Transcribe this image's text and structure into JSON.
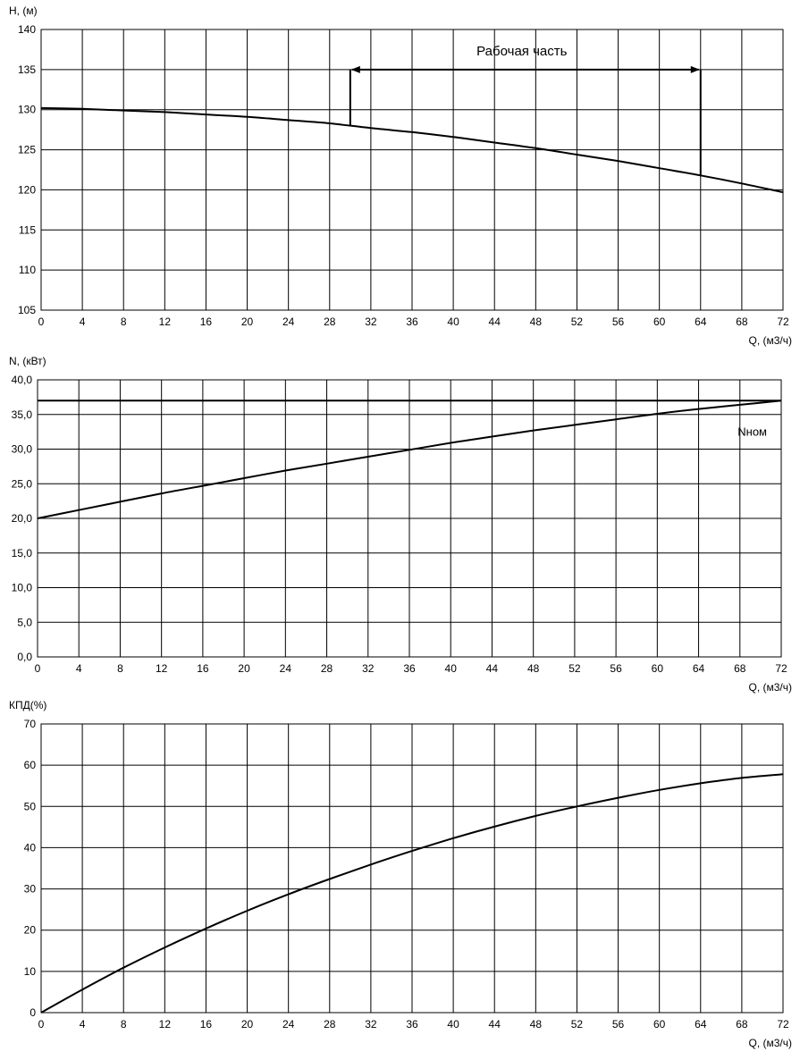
{
  "chart_data": [
    {
      "type": "line",
      "ylabel": "H, (м)",
      "xlabel": "Q, (м3/ч)",
      "xlim": [
        0,
        72
      ],
      "ylim": [
        105,
        140
      ],
      "x_ticks": [
        "0",
        "4",
        "8",
        "12",
        "16",
        "20",
        "24",
        "28",
        "32",
        "36",
        "40",
        "44",
        "48",
        "52",
        "56",
        "60",
        "64",
        "68",
        "72"
      ],
      "y_ticks": [
        "105",
        "110",
        "115",
        "120",
        "125",
        "130",
        "135",
        "140"
      ],
      "grid": true,
      "series": [
        {
          "x": [
            0,
            4,
            8,
            12,
            16,
            20,
            24,
            28,
            32,
            36,
            40,
            44,
            48,
            52,
            56,
            60,
            64,
            68,
            72
          ],
          "y": [
            130.2,
            130.1,
            129.9,
            129.7,
            129.4,
            129.1,
            128.7,
            128.3,
            127.7,
            127.2,
            126.6,
            125.9,
            125.2,
            124.4,
            123.6,
            122.7,
            121.8,
            120.8,
            119.7
          ]
        }
      ],
      "annotations": [
        {
          "text": "Рабочая часть",
          "x_start": 30,
          "x_end": 64,
          "arrow_y": 135
        }
      ]
    },
    {
      "type": "line",
      "ylabel": "N, (кВт)",
      "xlabel": "Q, (м3/ч)",
      "xlim": [
        0,
        72
      ],
      "ylim": [
        0,
        40
      ],
      "x_ticks": [
        "0",
        "4",
        "8",
        "12",
        "16",
        "20",
        "24",
        "28",
        "32",
        "36",
        "40",
        "44",
        "48",
        "52",
        "56",
        "60",
        "64",
        "68",
        "72"
      ],
      "y_ticks": [
        "0,0",
        "5,0",
        "10,0",
        "15,0",
        "20,0",
        "25,0",
        "30,0",
        "35,0",
        "40,0"
      ],
      "grid": true,
      "series": [
        {
          "x": [
            0,
            4,
            8,
            12,
            16,
            20,
            24,
            28,
            32,
            36,
            40,
            44,
            48,
            52,
            56,
            60,
            64,
            68,
            72
          ],
          "y": [
            20.0,
            21.2,
            22.4,
            23.6,
            24.7,
            25.8,
            26.9,
            27.9,
            28.9,
            29.9,
            30.9,
            31.8,
            32.7,
            33.5,
            34.3,
            35.1,
            35.8,
            36.4,
            37.0
          ]
        },
        {
          "name": "Nном",
          "x": [
            0,
            72
          ],
          "y": [
            37.0,
            37.0
          ]
        }
      ]
    },
    {
      "type": "line",
      "ylabel": "КПД(%)",
      "xlabel": "Q, (м3/ч)",
      "xlim": [
        0,
        72
      ],
      "ylim": [
        0,
        70
      ],
      "x_ticks": [
        "0",
        "4",
        "8",
        "12",
        "16",
        "20",
        "24",
        "28",
        "32",
        "36",
        "40",
        "44",
        "48",
        "52",
        "56",
        "60",
        "64",
        "68",
        "72"
      ],
      "y_ticks": [
        "0",
        "10",
        "20",
        "30",
        "40",
        "50",
        "60",
        "70"
      ],
      "grid": true,
      "series": [
        {
          "x": [
            0,
            4,
            8,
            12,
            16,
            20,
            24,
            28,
            32,
            36,
            40,
            44,
            48,
            52,
            56,
            60,
            64,
            68,
            72
          ],
          "y": [
            0,
            5.6,
            10.9,
            15.8,
            20.4,
            24.7,
            28.7,
            32.4,
            35.9,
            39.2,
            42.3,
            45.1,
            47.7,
            50.0,
            52.1,
            54.0,
            55.6,
            56.9,
            57.8
          ]
        }
      ]
    }
  ]
}
